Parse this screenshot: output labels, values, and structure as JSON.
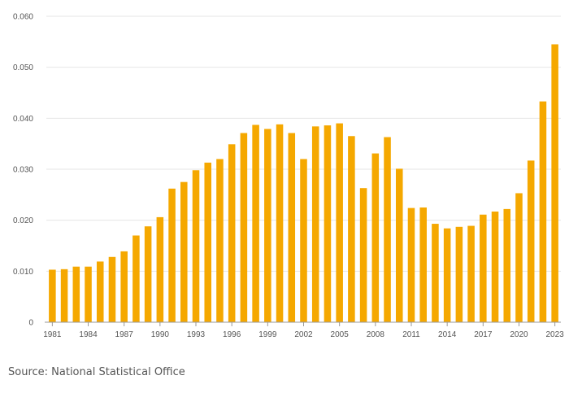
{
  "chart_data": {
    "type": "bar",
    "title": "",
    "xlabel": "",
    "ylabel": "",
    "ylim": [
      0,
      0.06
    ],
    "y_ticks": [
      "0",
      "0.010",
      "0.020",
      "0.030",
      "0.040",
      "0.050",
      "0.060"
    ],
    "y_tick_values": [
      0,
      0.01,
      0.02,
      0.03,
      0.04,
      0.05,
      0.06
    ],
    "x_tick_labels": [
      "1981",
      "1984",
      "1987",
      "1990",
      "1993",
      "1996",
      "1999",
      "2002",
      "2005",
      "2008",
      "2011",
      "2014",
      "2017",
      "2020",
      "2023"
    ],
    "categories": [
      "1981",
      "1982",
      "1983",
      "1984",
      "1985",
      "1986",
      "1987",
      "1988",
      "1989",
      "1990",
      "1991",
      "1992",
      "1993",
      "1994",
      "1995",
      "1996",
      "1997",
      "1998",
      "1999",
      "2000",
      "2001",
      "2002",
      "2003",
      "2004",
      "2005",
      "2006",
      "2007",
      "2008",
      "2009",
      "2010",
      "2011",
      "2012",
      "2013",
      "2014",
      "2015",
      "2016",
      "2017",
      "2018",
      "2019",
      "2020",
      "2021",
      "2022",
      "2023"
    ],
    "values": [
      0.0103,
      0.0104,
      0.0109,
      0.0109,
      0.0119,
      0.0128,
      0.0139,
      0.017,
      0.0188,
      0.0206,
      0.0262,
      0.0275,
      0.0298,
      0.0313,
      0.032,
      0.0349,
      0.0371,
      0.0387,
      0.0379,
      0.0388,
      0.0371,
      0.032,
      0.0384,
      0.0386,
      0.039,
      0.0365,
      0.0263,
      0.0331,
      0.0363,
      0.0301,
      0.0224,
      0.0225,
      0.0193,
      0.0184,
      0.0187,
      0.0189,
      0.0211,
      0.0217,
      0.0222,
      0.0253,
      0.0317,
      0.0433,
      0.0545
    ],
    "bar_color": "#f5a800",
    "grid": true
  },
  "source": "Source: National Statistical Office"
}
